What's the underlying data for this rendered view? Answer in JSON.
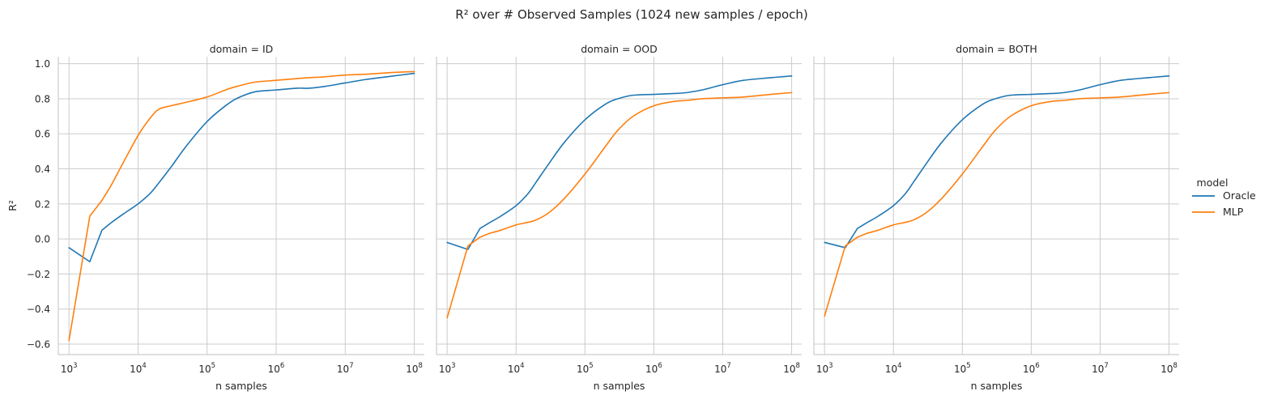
{
  "chart_data": {
    "type": "line",
    "title": "R² over # Observed Samples (1024 new samples / epoch)",
    "xlabel": "n samples",
    "ylabel": "R²",
    "xscale": "log",
    "x_ticks": [
      {
        "base": "10",
        "exp": "3",
        "value": 1000
      },
      {
        "base": "10",
        "exp": "4",
        "value": 10000
      },
      {
        "base": "10",
        "exp": "5",
        "value": 100000
      },
      {
        "base": "10",
        "exp": "6",
        "value": 1000000
      },
      {
        "base": "10",
        "exp": "7",
        "value": 10000000
      },
      {
        "base": "10",
        "exp": "8",
        "value": 100000000
      }
    ],
    "y_ticks": [
      "−0.6",
      "−0.4",
      "−0.2",
      "0.0",
      "0.2",
      "0.4",
      "0.6",
      "0.8",
      "1.0"
    ],
    "y_tick_values": [
      -0.6,
      -0.4,
      -0.2,
      0.0,
      0.2,
      0.4,
      0.6,
      0.8,
      1.0
    ],
    "xlim": [
      700,
      140000000
    ],
    "ylim": [
      -0.66,
      1.04
    ],
    "grid": true,
    "legend": {
      "title": "model",
      "position": "right",
      "entries": [
        {
          "label": "Oracle",
          "color": "#1f77b4"
        },
        {
          "label": "MLP",
          "color": "#ff7f0e"
        }
      ]
    },
    "x": [
      1000,
      2000,
      3000,
      4000,
      6000,
      10000,
      15000,
      20000,
      30000,
      50000,
      100000,
      200000,
      300000,
      500000,
      1000000,
      2000000,
      3000000,
      5000000,
      10000000,
      20000000,
      50000000,
      100000000
    ],
    "facets": [
      {
        "title": "domain = ID",
        "series": [
          {
            "name": "Oracle",
            "values": [
              -0.05,
              -0.13,
              0.05,
              0.09,
              0.14,
              0.2,
              0.26,
              0.32,
              0.41,
              0.53,
              0.67,
              0.77,
              0.81,
              0.84,
              0.85,
              0.86,
              0.86,
              0.87,
              0.89,
              0.91,
              0.93,
              0.945
            ]
          },
          {
            "name": "MLP",
            "values": [
              -0.58,
              0.13,
              0.22,
              0.3,
              0.43,
              0.59,
              0.69,
              0.74,
              0.76,
              0.78,
              0.81,
              0.855,
              0.875,
              0.895,
              0.905,
              0.915,
              0.92,
              0.925,
              0.935,
              0.94,
              0.95,
              0.955
            ]
          }
        ]
      },
      {
        "title": "domain = OOD",
        "series": [
          {
            "name": "Oracle",
            "values": [
              -0.02,
              -0.06,
              0.06,
              0.09,
              0.13,
              0.19,
              0.26,
              0.33,
              0.43,
              0.55,
              0.68,
              0.77,
              0.8,
              0.82,
              0.825,
              0.83,
              0.835,
              0.85,
              0.88,
              0.905,
              0.92,
              0.93
            ]
          },
          {
            "name": "MLP",
            "values": [
              -0.45,
              -0.04,
              0.01,
              0.03,
              0.05,
              0.08,
              0.095,
              0.11,
              0.15,
              0.23,
              0.37,
              0.53,
              0.62,
              0.7,
              0.76,
              0.785,
              0.79,
              0.8,
              0.805,
              0.81,
              0.825,
              0.835
            ]
          }
        ]
      },
      {
        "title": "domain = BOTH",
        "series": [
          {
            "name": "Oracle",
            "values": [
              -0.02,
              -0.05,
              0.06,
              0.09,
              0.13,
              0.19,
              0.26,
              0.33,
              0.43,
              0.55,
              0.68,
              0.77,
              0.8,
              0.82,
              0.825,
              0.83,
              0.835,
              0.85,
              0.88,
              0.905,
              0.92,
              0.93
            ]
          },
          {
            "name": "MLP",
            "values": [
              -0.44,
              -0.04,
              0.01,
              0.03,
              0.05,
              0.08,
              0.095,
              0.11,
              0.15,
              0.23,
              0.37,
              0.53,
              0.62,
              0.7,
              0.76,
              0.785,
              0.79,
              0.8,
              0.805,
              0.81,
              0.825,
              0.835
            ]
          }
        ]
      }
    ]
  }
}
